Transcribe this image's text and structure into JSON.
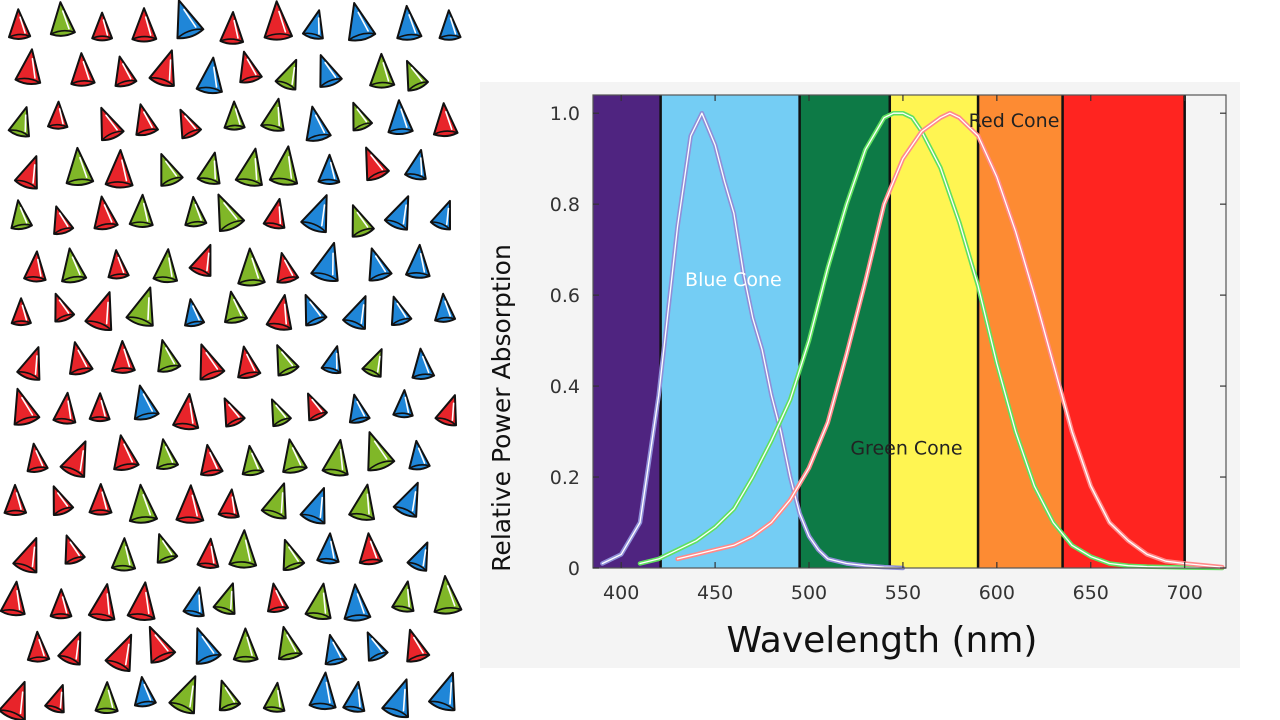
{
  "chart_data": {
    "type": "line",
    "title": "",
    "xlabel": "Wavelength (nm)",
    "ylabel": "Relative Power Absorption",
    "xlim": [
      385,
      722
    ],
    "ylim": [
      0,
      1.04
    ],
    "x_ticks": [
      400,
      450,
      500,
      550,
      600,
      650,
      700
    ],
    "y_ticks": [
      0,
      0.2,
      0.4,
      0.6,
      0.8,
      1.0
    ],
    "y_tick_labels": [
      "0",
      "0.2",
      "0.4",
      "0.6",
      "0.8",
      "1.0"
    ],
    "grid": false,
    "legend": "none",
    "color_bands": [
      {
        "from": 385,
        "to": 421,
        "color": "#4f2480"
      },
      {
        "from": 421,
        "to": 495,
        "color": "#74cdf4"
      },
      {
        "from": 495,
        "to": 543,
        "color": "#0d7a46"
      },
      {
        "from": 543,
        "to": 590,
        "color": "#fff552"
      },
      {
        "from": 590,
        "to": 635,
        "color": "#fd8b33"
      },
      {
        "from": 635,
        "to": 700,
        "color": "#ff2420"
      },
      {
        "from": 700,
        "to": 722,
        "color": "#f4f4f4"
      }
    ],
    "series": [
      {
        "name": "Blue Cone",
        "color": "#8f8fd8",
        "x": [
          390,
          400,
          410,
          420,
          430,
          437,
          443,
          450,
          455,
          460,
          465,
          470,
          475,
          480,
          485,
          490,
          495,
          500,
          505,
          510,
          520,
          530,
          540,
          550
        ],
        "y": [
          0.01,
          0.03,
          0.1,
          0.38,
          0.75,
          0.95,
          1.0,
          0.93,
          0.85,
          0.78,
          0.65,
          0.55,
          0.48,
          0.38,
          0.3,
          0.2,
          0.12,
          0.07,
          0.04,
          0.02,
          0.01,
          0.005,
          0.002,
          0.0
        ]
      },
      {
        "name": "Green Cone",
        "color": "#60e060",
        "x": [
          410,
          420,
          430,
          440,
          450,
          460,
          470,
          480,
          490,
          500,
          510,
          520,
          530,
          540,
          545,
          550,
          555,
          560,
          570,
          580,
          590,
          600,
          610,
          620,
          630,
          640,
          650,
          660,
          670,
          680,
          700,
          720
        ],
        "y": [
          0.01,
          0.02,
          0.04,
          0.06,
          0.09,
          0.13,
          0.2,
          0.28,
          0.37,
          0.5,
          0.66,
          0.8,
          0.92,
          0.99,
          1.0,
          1.0,
          0.99,
          0.96,
          0.88,
          0.76,
          0.62,
          0.45,
          0.3,
          0.18,
          0.1,
          0.05,
          0.025,
          0.01,
          0.005,
          0.003,
          0.001,
          0.0
        ]
      },
      {
        "name": "Red Cone",
        "color": "#ff8a8a",
        "x": [
          430,
          440,
          450,
          460,
          470,
          480,
          490,
          500,
          510,
          520,
          530,
          540,
          550,
          560,
          570,
          575,
          580,
          590,
          600,
          610,
          620,
          630,
          640,
          650,
          660,
          670,
          680,
          690,
          700,
          720
        ],
        "y": [
          0.02,
          0.03,
          0.04,
          0.05,
          0.07,
          0.1,
          0.15,
          0.22,
          0.32,
          0.47,
          0.63,
          0.8,
          0.9,
          0.96,
          0.99,
          1.0,
          0.99,
          0.95,
          0.86,
          0.74,
          0.6,
          0.45,
          0.3,
          0.18,
          0.1,
          0.06,
          0.03,
          0.015,
          0.01,
          0.002
        ]
      }
    ],
    "annotations": [
      {
        "text": "Blue Cone",
        "x": 434,
        "y": 0.62,
        "color": "#ffffff"
      },
      {
        "text": "Red Cone",
        "x": 585,
        "y": 0.97,
        "color": "#222222"
      },
      {
        "text": "Green Cone",
        "x": 522,
        "y": 0.25,
        "color": "#222222"
      }
    ]
  },
  "illustration": {
    "red_color": "#e8242a",
    "green_color": "#80b728",
    "blue_color": "#1f86d8"
  }
}
